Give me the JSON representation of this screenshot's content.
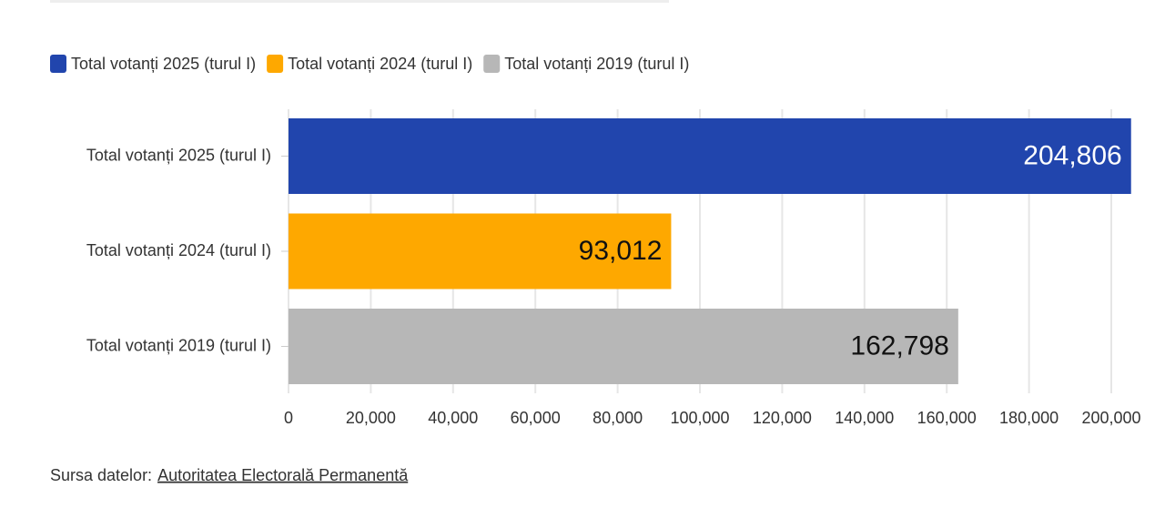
{
  "chart_data": {
    "type": "hbar",
    "categories": [
      "Total votanți 2025 (turul I)",
      "Total votanți 2024 (turul I)",
      "Total votanți 2019 (turul I)"
    ],
    "values": [
      204806,
      93012,
      162798
    ],
    "value_labels": [
      "204,806",
      "93,012",
      "162,798"
    ],
    "colors": [
      "#2145ad",
      "#fea800",
      "#b7b7b7"
    ],
    "label_colors": [
      "#ffffff",
      "#111111",
      "#111111"
    ],
    "xlim": [
      0,
      210000
    ],
    "xticks": [
      0,
      {
        "value": 20000,
        "label": "20,000"
      },
      {
        "value": 40000,
        "label": "40,000"
      },
      {
        "value": 60000,
        "label": "60,000"
      },
      {
        "value": 80000,
        "label": "80,000"
      },
      {
        "value": 100000,
        "label": "100,000"
      },
      {
        "value": 120000,
        "label": "120,000"
      },
      {
        "value": 140000,
        "label": "140,000"
      },
      {
        "value": 160000,
        "label": "160,000"
      },
      {
        "value": 180000,
        "label": "180,000"
      },
      {
        "value": 200000,
        "label": "200,000"
      }
    ],
    "grid": true,
    "legend": "top-left"
  },
  "footer": {
    "label": "Sursa datelor:",
    "link": "Autoritatea Electorală Permanentă"
  }
}
